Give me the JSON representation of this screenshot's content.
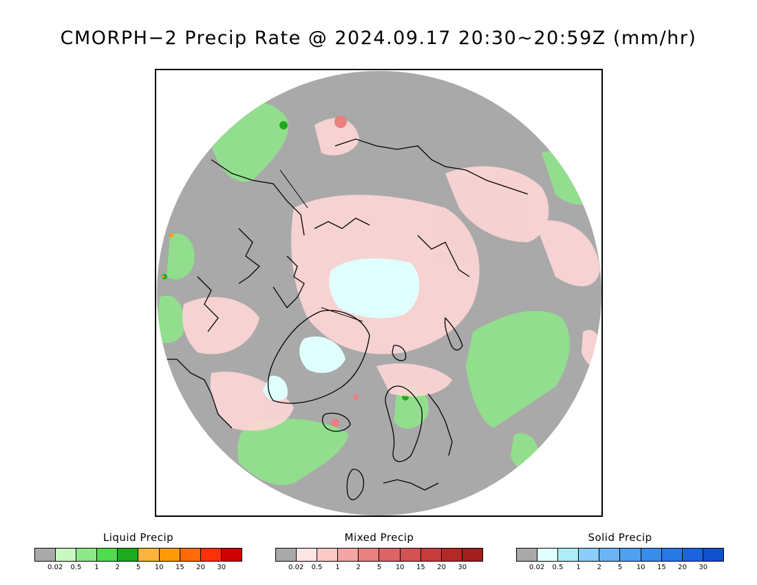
{
  "title": "CMORPH−2 Precip Rate @ 2024.09.17 20:30~20:59Z (mm/hr)",
  "map": {
    "projection": "north-polar-stereographic",
    "background_color": "#a9a9a9",
    "coastline_color": "#000000"
  },
  "legends": [
    {
      "title": "Liquid Precip",
      "colors": [
        "#a9a9a9",
        "#c8f8c0",
        "#8ee88a",
        "#4fdc4f",
        "#1eaa1e",
        "#fbb33b",
        "#fe9a0a",
        "#ff6a0a",
        "#fe3209",
        "#cd0000"
      ],
      "ticks": [
        "0.02",
        "0.5",
        "1",
        "2",
        "5",
        "10",
        "15",
        "20",
        "30"
      ]
    },
    {
      "title": "Mixed Precip",
      "colors": [
        "#a9a9a9",
        "#ffe4e4",
        "#fcc8c8",
        "#f4a4a4",
        "#e88080",
        "#dc6464",
        "#d25252",
        "#c43c3c",
        "#b42828",
        "#a01e1e"
      ],
      "ticks": [
        "0.02",
        "0.5",
        "1",
        "2",
        "5",
        "10",
        "15",
        "20",
        "30"
      ]
    },
    {
      "title": "Solid Precip",
      "colors": [
        "#a9a9a9",
        "#e0ffff",
        "#b0ecf8",
        "#8cccf8",
        "#6cb4f4",
        "#50a0f0",
        "#3a8cec",
        "#2878e6",
        "#1c64de",
        "#1050cc"
      ],
      "ticks": [
        "0.02",
        "0.5",
        "1",
        "2",
        "5",
        "10",
        "15",
        "20",
        "30"
      ]
    }
  ]
}
